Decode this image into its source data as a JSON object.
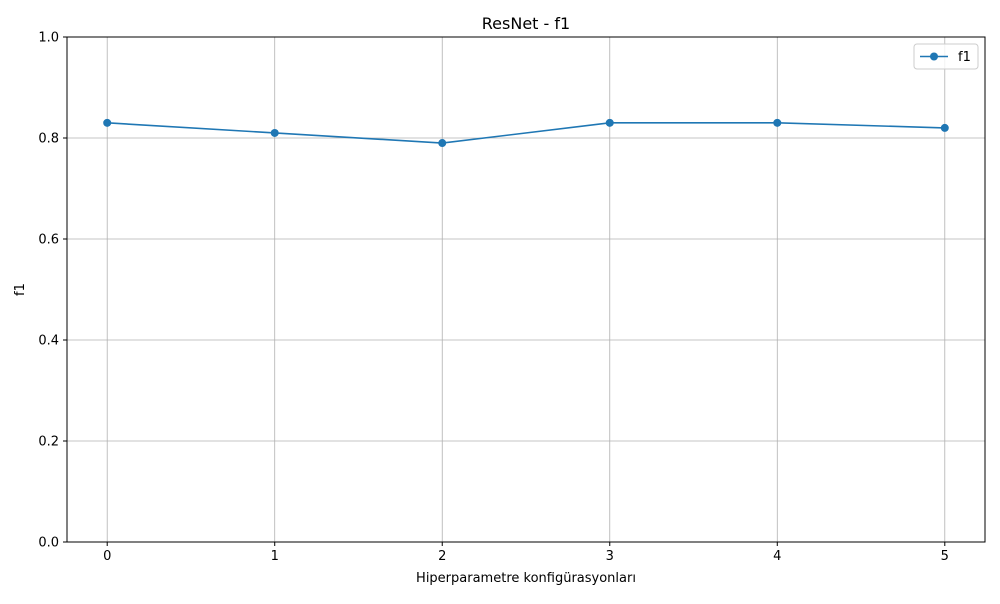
{
  "chart_data": {
    "type": "line",
    "title": "ResNet - f1",
    "xlabel": "Hiperparametre konfigürasyonları",
    "ylabel": "f1",
    "x": [
      0,
      1,
      2,
      3,
      4,
      5
    ],
    "x_ticks": [
      "0",
      "1",
      "2",
      "3",
      "4",
      "5"
    ],
    "y_ticks": [
      "0.0",
      "0.2",
      "0.4",
      "0.6",
      "0.8",
      "1.0"
    ],
    "xlim": [
      -0.24,
      5.24
    ],
    "ylim": [
      0,
      1
    ],
    "grid": true,
    "legend_position": "top-right",
    "series": [
      {
        "name": "f1",
        "color": "#1f77b4",
        "marker": "circle",
        "values": [
          0.83,
          0.81,
          0.79,
          0.83,
          0.83,
          0.82
        ]
      }
    ]
  }
}
